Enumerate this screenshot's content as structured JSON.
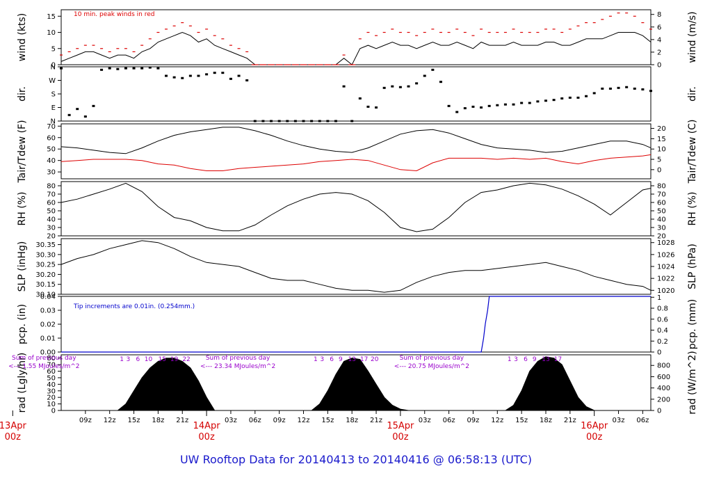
{
  "title": "UW Rooftop Data for 20140413  to  20140416 @ 06:58:13  (UTC)",
  "colors": {
    "main": "#000000",
    "red": "#dd0000",
    "blue": "#0000cc",
    "purple": "#9900cc",
    "title": "#1a1acc"
  },
  "time_axis": {
    "start_hour": 6,
    "end_hour": 79,
    "hour_ticks": [
      "09z",
      "12z",
      "15z",
      "18z",
      "21z",
      "03z",
      "06z",
      "09z",
      "12z",
      "15z",
      "18z",
      "21z",
      "03z",
      "06z",
      "09z",
      "12z",
      "15z",
      "18z",
      "21z",
      "03z",
      "06z"
    ],
    "hour_tick_values": [
      9,
      12,
      15,
      18,
      21,
      27,
      30,
      33,
      36,
      39,
      42,
      45,
      51,
      54,
      57,
      60,
      63,
      66,
      69,
      75,
      78
    ],
    "day_labels": [
      {
        "hour": 0,
        "line1": "13Apr",
        "line2": "00z"
      },
      {
        "hour": 24,
        "line1": "14Apr",
        "line2": "00z"
      },
      {
        "hour": 48,
        "line1": "15Apr",
        "line2": "00z"
      },
      {
        "hour": 72,
        "line1": "16Apr",
        "line2": "00z"
      }
    ]
  },
  "chart_data": [
    {
      "id": "wind",
      "type": "line",
      "ylabel": "wind (kts)",
      "ylabel_right": "wind (m/s)",
      "ylim": [
        0,
        17
      ],
      "yticks": [
        0,
        5,
        10,
        15
      ],
      "right_ticks": [
        "0",
        "2",
        "4",
        "6",
        "8"
      ],
      "right_tick_values_kts": [
        0,
        3.888,
        7.776,
        11.664,
        15.552
      ],
      "annotation": "10 min. peak winds in red",
      "series": [
        {
          "style": "black-line",
          "x": [
            6,
            7,
            8,
            9,
            10,
            11,
            12,
            13,
            14,
            15,
            16,
            17,
            18,
            19,
            20,
            21,
            22,
            23,
            24,
            25,
            26,
            27,
            28,
            29,
            30,
            31,
            32,
            33,
            34,
            35,
            36,
            37,
            38,
            39,
            40,
            41,
            42,
            43,
            44,
            45,
            46,
            47,
            48,
            49,
            50,
            51,
            52,
            53,
            54,
            55,
            56,
            57,
            58,
            59,
            60,
            61,
            62,
            63,
            64,
            65,
            66,
            67,
            68,
            69,
            70,
            71,
            72,
            73,
            74,
            75,
            76,
            77,
            78,
            79
          ],
          "values": [
            1,
            2,
            3,
            4,
            4,
            3,
            2,
            3,
            3,
            2,
            4,
            5,
            7,
            8,
            9,
            10,
            9,
            7,
            8,
            6,
            5,
            4,
            3,
            2,
            0,
            0,
            0,
            0,
            0,
            0,
            0,
            0,
            0,
            0,
            0,
            2,
            0,
            5,
            6,
            5,
            6,
            7,
            6,
            6,
            5,
            6,
            7,
            6,
            6,
            7,
            6,
            5,
            7,
            6,
            6,
            6,
            7,
            6,
            6,
            6,
            7,
            7,
            6,
            6,
            7,
            8,
            8,
            8,
            9,
            10,
            10,
            10,
            9,
            7
          ]
        },
        {
          "style": "red-peaks",
          "x": [
            6,
            7,
            8,
            9,
            10,
            11,
            12,
            13,
            14,
            15,
            16,
            17,
            18,
            19,
            20,
            21,
            22,
            23,
            24,
            25,
            26,
            27,
            28,
            29,
            30,
            31,
            32,
            33,
            34,
            35,
            36,
            37,
            38,
            39,
            40,
            41,
            42,
            43,
            44,
            45,
            46,
            47,
            48,
            49,
            50,
            51,
            52,
            53,
            54,
            55,
            56,
            57,
            58,
            59,
            60,
            61,
            62,
            63,
            64,
            65,
            66,
            67,
            68,
            69,
            70,
            71,
            72,
            73,
            74,
            75,
            76,
            77,
            78,
            79
          ],
          "values": [
            3,
            4,
            5,
            6,
            6,
            5,
            4,
            5,
            5,
            4,
            6,
            8,
            10,
            11,
            12,
            13,
            12,
            10,
            11,
            9,
            8,
            6,
            5,
            4,
            0,
            0,
            0,
            0,
            0,
            0,
            0,
            0,
            0,
            0,
            0,
            3,
            0,
            8,
            10,
            9,
            10,
            11,
            10,
            10,
            9,
            10,
            11,
            10,
            10,
            11,
            10,
            9,
            11,
            10,
            10,
            10,
            11,
            10,
            10,
            10,
            11,
            11,
            10,
            11,
            12,
            13,
            13,
            14,
            15,
            16,
            16,
            15,
            13,
            11
          ]
        }
      ]
    },
    {
      "id": "dir",
      "type": "scatter",
      "ylabel": "dir.",
      "ylabel_right": "dir.",
      "ylim": [
        0,
        360
      ],
      "ytick_labels": [
        "N",
        "W",
        "S",
        "E",
        "N"
      ],
      "ytick_values": [
        360,
        270,
        180,
        90,
        0
      ],
      "x": [
        6,
        7,
        8,
        9,
        10,
        11,
        12,
        13,
        14,
        15,
        16,
        17,
        18,
        19,
        20,
        21,
        22,
        23,
        24,
        25,
        26,
        27,
        28,
        29,
        30,
        31,
        32,
        33,
        34,
        35,
        36,
        37,
        38,
        39,
        40,
        41,
        42,
        43,
        44,
        45,
        46,
        47,
        48,
        49,
        50,
        51,
        52,
        53,
        54,
        55,
        56,
        57,
        58,
        59,
        60,
        61,
        62,
        63,
        64,
        65,
        66,
        67,
        68,
        69,
        70,
        71,
        72,
        73,
        74,
        75,
        76,
        77,
        78,
        79
      ],
      "values": [
        350,
        40,
        80,
        30,
        100,
        340,
        350,
        345,
        350,
        350,
        350,
        355,
        350,
        300,
        290,
        285,
        300,
        300,
        310,
        320,
        320,
        280,
        300,
        270,
        0,
        0,
        0,
        0,
        0,
        0,
        0,
        0,
        0,
        0,
        0,
        230,
        0,
        150,
        95,
        90,
        220,
        230,
        225,
        230,
        250,
        300,
        340,
        260,
        100,
        60,
        85,
        95,
        90,
        100,
        105,
        110,
        110,
        120,
        120,
        130,
        135,
        140,
        150,
        155,
        155,
        165,
        185,
        215,
        215,
        220,
        225,
        215,
        210,
        200
      ]
    },
    {
      "id": "temp",
      "type": "line",
      "ylabel": "Tair/Tdew (F)",
      "ylabel_right": "Tair/Tdew (C)",
      "ylim": [
        24,
        72
      ],
      "yticks": [
        30,
        40,
        50,
        60,
        70
      ],
      "right_ticks": [
        "0",
        "5",
        "10",
        "15",
        "20"
      ],
      "right_tick_values_f": [
        32,
        41,
        50,
        59,
        68
      ],
      "series": [
        {
          "name": "Tair",
          "color": "black",
          "x": [
            6,
            8,
            10,
            12,
            14,
            16,
            18,
            20,
            22,
            24,
            26,
            28,
            30,
            32,
            34,
            36,
            38,
            40,
            42,
            44,
            46,
            48,
            50,
            52,
            54,
            56,
            58,
            60,
            62,
            64,
            66,
            68,
            70,
            72,
            74,
            76,
            78,
            79
          ],
          "values": [
            52,
            51,
            49,
            47,
            46,
            51,
            57,
            62,
            65,
            67,
            69,
            69,
            66,
            62,
            57,
            53,
            50,
            48,
            47,
            51,
            57,
            63,
            66,
            67,
            64,
            59,
            54,
            51,
            50,
            49,
            47,
            48,
            51,
            54,
            57,
            57,
            54,
            51
          ]
        },
        {
          "name": "Tdew",
          "color": "red",
          "x": [
            6,
            8,
            10,
            12,
            14,
            16,
            18,
            20,
            22,
            24,
            26,
            28,
            30,
            32,
            34,
            36,
            38,
            40,
            42,
            44,
            46,
            48,
            50,
            52,
            54,
            56,
            58,
            60,
            62,
            64,
            66,
            68,
            70,
            72,
            74,
            76,
            78,
            79
          ],
          "values": [
            39,
            40,
            41,
            41,
            41,
            40,
            37,
            36,
            33,
            31,
            31,
            33,
            34,
            35,
            36,
            37,
            39,
            40,
            41,
            40,
            36,
            32,
            31,
            38,
            42,
            42,
            42,
            41,
            42,
            41,
            42,
            39,
            37,
            40,
            42,
            43,
            44,
            45
          ]
        }
      ]
    },
    {
      "id": "rh",
      "type": "line",
      "ylabel": "RH (%)",
      "ylabel_right": "RH (%)",
      "ylim": [
        20,
        85
      ],
      "yticks": [
        20,
        30,
        40,
        50,
        60,
        70,
        80
      ],
      "right_ticks": [
        "20",
        "30",
        "40",
        "50",
        "60",
        "70",
        "80"
      ],
      "x": [
        6,
        8,
        10,
        12,
        14,
        16,
        18,
        20,
        22,
        24,
        26,
        28,
        30,
        32,
        34,
        36,
        38,
        40,
        42,
        44,
        46,
        48,
        50,
        52,
        54,
        56,
        58,
        60,
        62,
        64,
        66,
        68,
        70,
        72,
        74,
        76,
        78,
        79
      ],
      "values": [
        60,
        64,
        70,
        76,
        83,
        73,
        55,
        42,
        38,
        30,
        26,
        26,
        33,
        45,
        56,
        64,
        70,
        72,
        70,
        62,
        48,
        30,
        25,
        28,
        42,
        60,
        72,
        75,
        80,
        83,
        81,
        76,
        68,
        58,
        45,
        60,
        75,
        77
      ]
    },
    {
      "id": "slp",
      "type": "line",
      "ylabel": "SLP (inHg)",
      "ylabel_right": "SLP (hPa)",
      "ylim": [
        30.1,
        30.38
      ],
      "yticks": [
        30.1,
        30.15,
        30.2,
        30.25,
        30.3,
        30.35
      ],
      "ytick_labels": [
        "30.10",
        "30.15",
        "30.20",
        "30.25",
        "30.30",
        "30.35"
      ],
      "right_ticks": [
        "1020",
        "1022",
        "1024",
        "1026",
        "1028"
      ],
      "right_tick_values_inhg": [
        30.12,
        30.18,
        30.24,
        30.3,
        30.36
      ],
      "x": [
        6,
        8,
        10,
        12,
        14,
        16,
        18,
        20,
        22,
        24,
        26,
        28,
        30,
        32,
        34,
        36,
        38,
        40,
        42,
        44,
        46,
        48,
        50,
        52,
        54,
        56,
        58,
        60,
        62,
        64,
        66,
        68,
        70,
        72,
        74,
        76,
        78,
        79
      ],
      "values": [
        30.25,
        30.28,
        30.3,
        30.33,
        30.35,
        30.37,
        30.36,
        30.33,
        30.29,
        30.26,
        30.25,
        30.24,
        30.21,
        30.18,
        30.17,
        30.17,
        30.15,
        30.13,
        30.12,
        30.12,
        30.11,
        30.12,
        30.16,
        30.19,
        30.21,
        30.22,
        30.22,
        30.23,
        30.24,
        30.25,
        30.26,
        30.24,
        30.22,
        30.19,
        30.17,
        30.15,
        30.14,
        30.12
      ]
    },
    {
      "id": "pcp",
      "type": "line",
      "ylabel": "pcp. (in)",
      "ylabel_right": "pcp. (mm)",
      "ylim": [
        0,
        0.04
      ],
      "yticks": [
        0,
        0.01,
        0.02,
        0.03,
        0.04
      ],
      "ytick_labels": [
        "0.00",
        "0.01",
        "0.02",
        "0.03",
        "0.04"
      ],
      "right_ticks": [
        "0",
        "0.2",
        "0.4",
        "0.6",
        "0.8",
        "1"
      ],
      "right_tick_values_in": [
        0,
        0.00787,
        0.01575,
        0.02362,
        0.0315,
        0.03937
      ],
      "annotation": "Tip increments are 0.01in. (0.254mm.)",
      "x": [
        6,
        58,
        58.3,
        58.5,
        58.8,
        59,
        79
      ],
      "values": [
        0,
        0,
        0.01,
        0.02,
        0.03,
        0.04,
        0.04
      ]
    },
    {
      "id": "rad",
      "type": "area",
      "ylabel": "rad (Lgly/hr)",
      "ylabel_right": "rad (W/m^2)",
      "ylim": [
        0,
        85
      ],
      "yticks": [
        0,
        10,
        20,
        30,
        40,
        50,
        60,
        70,
        80
      ],
      "right_ticks": [
        "0",
        "200",
        "400",
        "600",
        "800"
      ],
      "right_tick_values_lgly": [
        0,
        17.2,
        34.4,
        51.6,
        68.8
      ],
      "x": [
        6,
        13,
        14,
        15,
        16,
        17,
        18,
        19,
        20,
        21,
        22,
        23,
        24,
        25,
        37,
        38,
        39,
        40,
        41,
        42,
        43,
        44,
        45,
        46,
        47,
        48,
        49,
        61,
        62,
        63,
        64,
        65,
        66,
        67,
        68,
        69,
        70,
        71,
        72,
        79
      ],
      "values": [
        0,
        0,
        10,
        30,
        50,
        65,
        75,
        80,
        80,
        75,
        65,
        45,
        20,
        0,
        0,
        10,
        30,
        55,
        75,
        80,
        78,
        60,
        40,
        20,
        8,
        2,
        0,
        0,
        8,
        30,
        60,
        75,
        82,
        80,
        70,
        45,
        20,
        6,
        0,
        0
      ],
      "day_notes": [
        {
          "hour": 0,
          "line1": "Sum of previous day",
          "line2": "<--- 1.55 MJoules/m^2"
        },
        {
          "hour": 24,
          "line1": "Sum of previous day",
          "line2": "<--- 23.34 MJoules/m^2"
        },
        {
          "hour": 48,
          "line1": "Sum of previous day",
          "line2": "<--- 20.75 MJoules/m^2"
        }
      ],
      "hour_marks": [
        {
          "labels": [
            "1",
            "3",
            "6",
            "10",
            "15",
            "19",
            "22"
          ],
          "x": [
            13.5,
            14.3,
            15.5,
            16.8,
            18.5,
            20,
            21.5
          ]
        },
        {
          "labels": [
            "1",
            "3",
            "6",
            "9",
            "13",
            "17",
            "20"
          ],
          "x": [
            37.5,
            38.3,
            39.5,
            40.6,
            42,
            43.5,
            44.8
          ]
        },
        {
          "labels": [
            "1",
            "3",
            "6",
            "9",
            "13",
            "17"
          ],
          "x": [
            61.5,
            62.3,
            63.5,
            64.6,
            66,
            67.5
          ]
        }
      ]
    }
  ]
}
